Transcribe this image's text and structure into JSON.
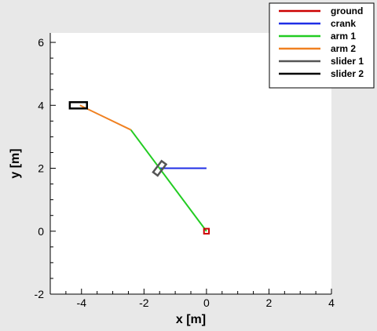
{
  "chart_data": {
    "type": "line",
    "xlabel": "x [m]",
    "ylabel": "y [m]",
    "xlim": [
      -5,
      4
    ],
    "ylim": [
      -2,
      6.3
    ],
    "x_ticks": [
      -4,
      -2,
      0,
      2,
      4
    ],
    "y_ticks": [
      -2,
      0,
      2,
      4,
      6
    ],
    "x_tick_labels": [
      "-4",
      "-2",
      "0",
      "2",
      "4"
    ],
    "y_tick_labels": [
      "-2",
      "0",
      "2",
      "4",
      "6"
    ],
    "grid": false,
    "legend_position": "top-right",
    "series": [
      {
        "name": "ground",
        "color": "#cc0000",
        "kind": "square",
        "center": [
          0,
          0
        ],
        "size": 0.16
      },
      {
        "name": "crank",
        "color": "#1f2ee6",
        "kind": "line",
        "points": [
          [
            0,
            2
          ],
          [
            -1.5,
            2
          ]
        ]
      },
      {
        "name": "arm 1",
        "color": "#22cc22",
        "kind": "line",
        "points": [
          [
            0,
            0
          ],
          [
            -2.42,
            3.22
          ]
        ]
      },
      {
        "name": "arm 2",
        "color": "#f08020",
        "kind": "line",
        "points": [
          [
            -2.42,
            3.22
          ],
          [
            -4.05,
            4.0
          ]
        ]
      },
      {
        "name": "slider 1",
        "color": "#555555",
        "kind": "rect",
        "center": [
          -1.5,
          2
        ],
        "length": 0.45,
        "width": 0.18,
        "angle_deg": -53
      },
      {
        "name": "slider 2",
        "color": "#000000",
        "kind": "rect",
        "center": [
          -4.1,
          4
        ],
        "length": 0.55,
        "width": 0.2,
        "angle_deg": 0
      }
    ]
  }
}
